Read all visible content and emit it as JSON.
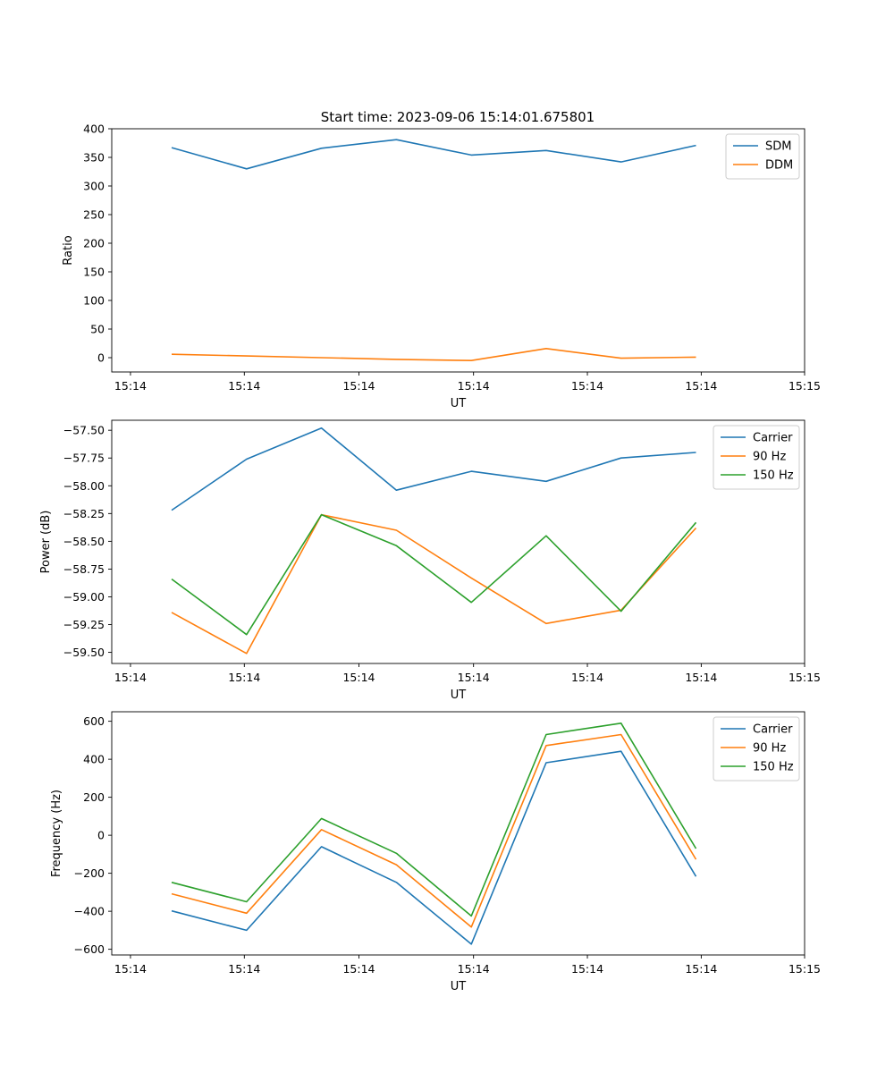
{
  "figure_title": "Start time: 2023-09-06 15:14:01.675801",
  "chart_data": [
    {
      "type": "line",
      "ylabel": "Ratio",
      "xlabel": "UT",
      "x": [
        1,
        2,
        3,
        4,
        5,
        6,
        7,
        8
      ],
      "xlim": [
        0.2,
        9.45
      ],
      "x_ticks": [
        0.45,
        1.97,
        3.5,
        5.03,
        6.55,
        8.07,
        9.45
      ],
      "x_tick_labels": [
        "15:14",
        "15:14",
        "15:14",
        "15:14",
        "15:14",
        "15:14",
        "15:15"
      ],
      "ylim": [
        -25,
        400
      ],
      "y_ticks": [
        0,
        50,
        100,
        150,
        200,
        250,
        300,
        350,
        400
      ],
      "y_tick_labels": [
        "0",
        "50",
        "100",
        "150",
        "200",
        "250",
        "300",
        "350",
        "400"
      ],
      "legend_loc": "upper right",
      "series": [
        {
          "name": "SDM",
          "color": "#1f77b4",
          "values": [
            367,
            330,
            366,
            381,
            354,
            362,
            342,
            371
          ]
        },
        {
          "name": "DDM",
          "color": "#ff7f0e",
          "values": [
            6,
            3,
            0,
            -3,
            -5,
            16,
            -1,
            1
          ]
        }
      ]
    },
    {
      "type": "line",
      "ylabel": "Power (dB)",
      "xlabel": "UT",
      "x": [
        1,
        2,
        3,
        4,
        5,
        6,
        7,
        8
      ],
      "xlim": [
        0.2,
        9.45
      ],
      "x_ticks": [
        0.45,
        1.97,
        3.5,
        5.03,
        6.55,
        8.07,
        9.45
      ],
      "x_tick_labels": [
        "15:14",
        "15:14",
        "15:14",
        "15:14",
        "15:14",
        "15:14",
        "15:15"
      ],
      "ylim": [
        -59.6,
        -57.41
      ],
      "y_ticks": [
        -59.5,
        -59.25,
        -59.0,
        -58.75,
        -58.5,
        -58.25,
        -58.0,
        -57.75,
        -57.5
      ],
      "y_tick_labels": [
        "−59.50",
        "−59.25",
        "−59.00",
        "−58.75",
        "−58.50",
        "−58.25",
        "−58.00",
        "−57.75",
        "−57.50"
      ],
      "legend_loc": "upper right",
      "series": [
        {
          "name": "Carrier",
          "color": "#1f77b4",
          "values": [
            -58.22,
            -57.76,
            -57.48,
            -58.04,
            -57.87,
            -57.96,
            -57.75,
            -57.7
          ]
        },
        {
          "name": "90 Hz",
          "color": "#ff7f0e",
          "values": [
            -59.14,
            -59.51,
            -58.26,
            -58.4,
            -58.83,
            -59.24,
            -59.12,
            -58.38
          ]
        },
        {
          "name": "150 Hz",
          "color": "#2ca02c",
          "values": [
            -58.84,
            -59.34,
            -58.26,
            -58.54,
            -59.05,
            -58.45,
            -59.13,
            -58.33
          ]
        }
      ]
    },
    {
      "type": "line",
      "ylabel": "Frequency (Hz)",
      "xlabel": "UT",
      "x": [
        1,
        2,
        3,
        4,
        5,
        6,
        7,
        8
      ],
      "xlim": [
        0.2,
        9.45
      ],
      "x_ticks": [
        0.45,
        1.97,
        3.5,
        5.03,
        6.55,
        8.07,
        9.45
      ],
      "x_tick_labels": [
        "15:14",
        "15:14",
        "15:14",
        "15:14",
        "15:14",
        "15:14",
        "15:15"
      ],
      "ylim": [
        -630,
        650
      ],
      "y_ticks": [
        -600,
        -400,
        -200,
        0,
        200,
        400,
        600
      ],
      "y_tick_labels": [
        "−600",
        "−400",
        "−200",
        "0",
        "200",
        "400",
        "600"
      ],
      "legend_loc": "upper right",
      "series": [
        {
          "name": "Carrier",
          "color": "#1f77b4",
          "values": [
            -398,
            -500,
            -60,
            -248,
            -573,
            382,
            442,
            -217
          ]
        },
        {
          "name": "90 Hz",
          "color": "#ff7f0e",
          "values": [
            -308,
            -410,
            30,
            -155,
            -483,
            472,
            530,
            -127
          ]
        },
        {
          "name": "150 Hz",
          "color": "#2ca02c",
          "values": [
            -248,
            -350,
            88,
            -95,
            -425,
            530,
            590,
            -70
          ]
        }
      ]
    }
  ]
}
